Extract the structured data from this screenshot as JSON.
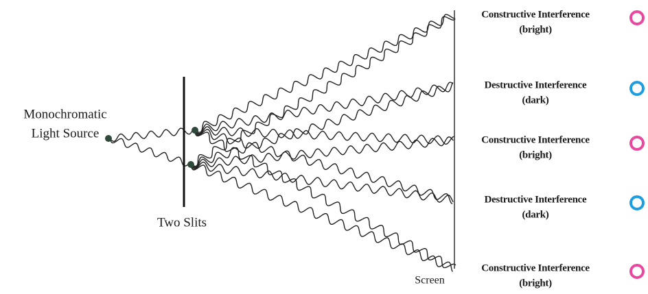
{
  "source": {
    "label_lines": [
      "Monochromatic",
      "Light Source"
    ]
  },
  "slits": {
    "label": "Two Slits"
  },
  "screen": {
    "label": "Screen"
  },
  "fringes": [
    {
      "title": "Constructive Interference",
      "subtitle": "(bright)",
      "color": "#e8489e"
    },
    {
      "title": "Destructive Interference",
      "subtitle": "(dark)",
      "color": "#1e9ee0"
    },
    {
      "title": "Constructive Interference",
      "subtitle": "(bright)",
      "color": "#e8489e"
    },
    {
      "title": "Destructive Interference",
      "subtitle": "(dark)",
      "color": "#1e9ee0"
    },
    {
      "title": "Constructive Interference",
      "subtitle": "(bright)",
      "color": "#e8489e"
    }
  ]
}
